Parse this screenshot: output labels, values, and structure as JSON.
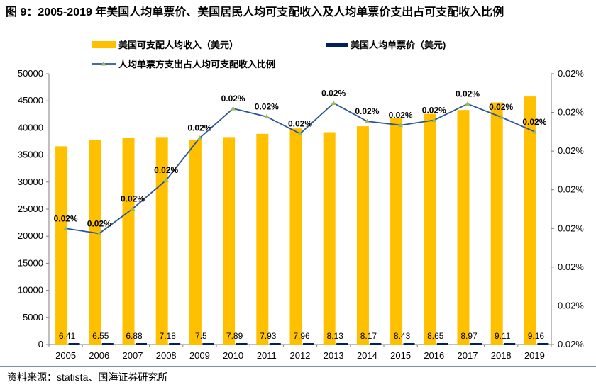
{
  "title": "图 9：2005-2019 年美国人均单票价、美国居民人均可支配收入及人均单票价支出占可支配收入比例",
  "source": "资料来源：statista、国海证券研究所",
  "chart_data": {
    "type": "bar",
    "categories": [
      "2005",
      "2006",
      "2007",
      "2008",
      "2009",
      "2010",
      "2011",
      "2012",
      "2013",
      "2014",
      "2015",
      "2016",
      "2017",
      "2018",
      "2019"
    ],
    "series": [
      {
        "name": "美国可支配人均收入（美元）",
        "kind": "bar",
        "axis": "left",
        "color": "#ffc000",
        "values": [
          36600,
          37700,
          38200,
          38300,
          37800,
          38300,
          38900,
          39900,
          39200,
          40300,
          41800,
          42600,
          43300,
          44700,
          45800
        ]
      },
      {
        "name": "美国人均单票价（美元)",
        "kind": "bar",
        "axis": "left",
        "color": "#002060",
        "values": [
          6.41,
          6.55,
          6.88,
          7.18,
          7.5,
          7.89,
          7.93,
          7.96,
          8.13,
          8.17,
          8.43,
          8.65,
          8.97,
          9.11,
          9.16
        ],
        "labels": [
          "6.41",
          "6.55",
          "6.88",
          "7.18",
          "7.5",
          "7.89",
          "7.93",
          "7.96",
          "8.13",
          "8.17",
          "8.43",
          "8.65",
          "8.97",
          "9.11",
          "9.16"
        ]
      },
      {
        "name": "人均单票方支出占人均可支配收入比例",
        "kind": "line",
        "axis": "right",
        "color": "#2e5597",
        "marker_color": "#9bbb59",
        "values": [
          0.0175,
          0.01737,
          0.01801,
          0.01875,
          0.01984,
          0.0206,
          0.02039,
          0.01995,
          0.02074,
          0.02027,
          0.02017,
          0.0203,
          0.02072,
          0.02038,
          0.02
        ]
      }
    ],
    "point_labels": [
      "0.02%",
      "0.02%",
      "0.02%",
      "0.02%",
      "0.02%",
      "0.02%",
      "0.02%",
      "0.02%",
      "0.02%",
      "0.02%",
      "0.02%",
      "0.02%",
      "0.02%",
      "0.02%",
      "0.02%"
    ],
    "y_left": {
      "ylim": [
        0,
        50000
      ],
      "ticks": [
        "0",
        "5000",
        "10000",
        "15000",
        "20000",
        "25000",
        "30000",
        "35000",
        "40000",
        "45000",
        "50000"
      ]
    },
    "y_right": {
      "ylim": [
        0.0145,
        0.0215
      ],
      "ticks": [
        "0.02%",
        "0.02%",
        "0.02%",
        "0.02%",
        "0.02%",
        "0.02%",
        "0.02%",
        "0.02%"
      ]
    },
    "legend_placement": "top",
    "grid": false
  }
}
